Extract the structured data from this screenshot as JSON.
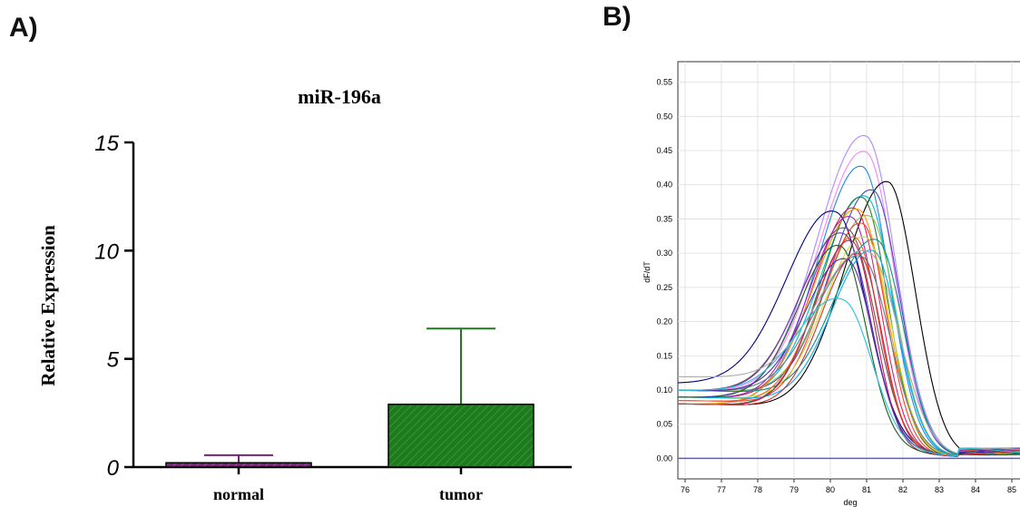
{
  "panels": {
    "a": "A)",
    "b": "B)"
  },
  "chart_data": [
    {
      "type": "bar",
      "title": "miR-196a",
      "xlabel": "",
      "ylabel": "Relative Expression",
      "ylim": [
        0,
        15
      ],
      "yticks": [
        "0",
        "5",
        "10",
        "15"
      ],
      "categories": [
        "normal",
        "tumor"
      ],
      "values": [
        0.2,
        2.9
      ],
      "error_upper": [
        0.55,
        6.4
      ],
      "colors": [
        "#7b1f7b",
        "#1f7a1f"
      ],
      "grid": false
    },
    {
      "type": "line",
      "title": "",
      "xlabel": "deg",
      "ylabel": "dF/dT",
      "xlim": [
        75.8,
        85.3
      ],
      "ylim": [
        -0.03,
        0.58
      ],
      "xticks": [
        "76",
        "77",
        "78",
        "79",
        "80",
        "81",
        "82",
        "83",
        "84",
        "85"
      ],
      "yticks": [
        "0.00",
        "0.05",
        "0.10",
        "0.15",
        "0.20",
        "0.25",
        "0.30",
        "0.35",
        "0.40",
        "0.45",
        "0.50",
        "0.55"
      ],
      "grid": true,
      "baseline": {
        "y": 0.0,
        "color": "#5b5bd6"
      },
      "series": [
        {
          "color": "#b388ff",
          "peak_x": 81.0,
          "peak_y": 0.528,
          "base": 0.09,
          "w": 1.3
        },
        {
          "color": "#ff80ff",
          "peak_x": 81.0,
          "peak_y": 0.511,
          "base": 0.1,
          "w": 1.25
        },
        {
          "color": "#1e88e5",
          "peak_x": 80.9,
          "peak_y": 0.475,
          "base": 0.08,
          "w": 1.2
        },
        {
          "color": "#000000",
          "peak_x": 81.6,
          "peak_y": 0.466,
          "base": 0.08,
          "w": 1.2
        },
        {
          "color": "#3f51b5",
          "peak_x": 81.2,
          "peak_y": 0.46,
          "base": 0.1,
          "w": 1.15
        },
        {
          "color": "#00bcd4",
          "peak_x": 81.0,
          "peak_y": 0.44,
          "base": 0.09,
          "w": 1.2
        },
        {
          "color": "#2e7d32",
          "peak_x": 80.9,
          "peak_y": 0.43,
          "base": 0.08,
          "w": 1.1
        },
        {
          "color": "#8bc34a",
          "peak_x": 81.1,
          "peak_y": 0.42,
          "base": 0.1,
          "w": 1.15
        },
        {
          "color": "#e91e63",
          "peak_x": 80.7,
          "peak_y": 0.415,
          "base": 0.09,
          "w": 1.1
        },
        {
          "color": "#ff9800",
          "peak_x": 80.8,
          "peak_y": 0.41,
          "base": 0.08,
          "w": 1.2
        },
        {
          "color": "#000080",
          "peak_x": 80.2,
          "peak_y": 0.405,
          "base": 0.11,
          "w": 1.3
        },
        {
          "color": "#9c27b0",
          "peak_x": 80.6,
          "peak_y": 0.4,
          "base": 0.09,
          "w": 1.1
        },
        {
          "color": "#f44336",
          "peak_x": 80.9,
          "peak_y": 0.395,
          "base": 0.085,
          "w": 1.05
        },
        {
          "color": "#009688",
          "peak_x": 81.3,
          "peak_y": 0.39,
          "base": 0.1,
          "w": 1.15
        },
        {
          "color": "#795548",
          "peak_x": 80.5,
          "peak_y": 0.385,
          "base": 0.1,
          "w": 1.2
        },
        {
          "color": "#cddc39",
          "peak_x": 81.0,
          "peak_y": 0.38,
          "base": 0.09,
          "w": 1.1
        },
        {
          "color": "#673ab7",
          "peak_x": 80.4,
          "peak_y": 0.375,
          "base": 0.1,
          "w": 1.15
        },
        {
          "color": "#ff5722",
          "peak_x": 80.7,
          "peak_y": 0.37,
          "base": 0.085,
          "w": 1.05
        },
        {
          "color": "#03a9f4",
          "peak_x": 81.2,
          "peak_y": 0.365,
          "base": 0.09,
          "w": 1.1
        },
        {
          "color": "#c2185b",
          "peak_x": 80.6,
          "peak_y": 0.36,
          "base": 0.08,
          "w": 1.0
        },
        {
          "color": "#607d8b",
          "peak_x": 80.9,
          "peak_y": 0.355,
          "base": 0.1,
          "w": 1.2
        },
        {
          "color": "#1b5e20",
          "peak_x": 80.3,
          "peak_y": 0.35,
          "base": 0.09,
          "w": 1.1
        },
        {
          "color": "#d32f2f",
          "peak_x": 80.8,
          "peak_y": 0.345,
          "base": 0.08,
          "w": 1.0
        },
        {
          "color": "#512da8",
          "peak_x": 80.5,
          "peak_y": 0.34,
          "base": 0.1,
          "w": 1.1
        },
        {
          "color": "#aaaaaa",
          "peak_x": 81.1,
          "peak_y": 0.38,
          "base": 0.12,
          "w": 1.3
        },
        {
          "color": "#26c6da",
          "peak_x": 80.4,
          "peak_y": 0.278,
          "base": 0.1,
          "w": 1.2
        }
      ]
    }
  ]
}
